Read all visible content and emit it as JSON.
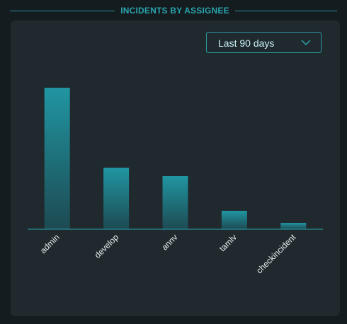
{
  "header": {
    "title": "INCIDENTS BY ASSIGNEE"
  },
  "filter": {
    "selected": "Last 90 days"
  },
  "colors": {
    "accent": "#2ba3ad",
    "bar_top": "#2096a2",
    "bar_bottom": "#1d4a52",
    "panel": "#1f292e"
  },
  "chart_data": {
    "type": "bar",
    "categories": [
      "admin",
      "develop",
      "annv",
      "tamlv",
      "checkincident"
    ],
    "values": [
      200,
      87,
      75,
      26,
      9
    ],
    "ylim": [
      0,
      200
    ],
    "title": "INCIDENTS BY ASSIGNEE",
    "xlabel": "",
    "ylabel": "",
    "grid": false
  }
}
